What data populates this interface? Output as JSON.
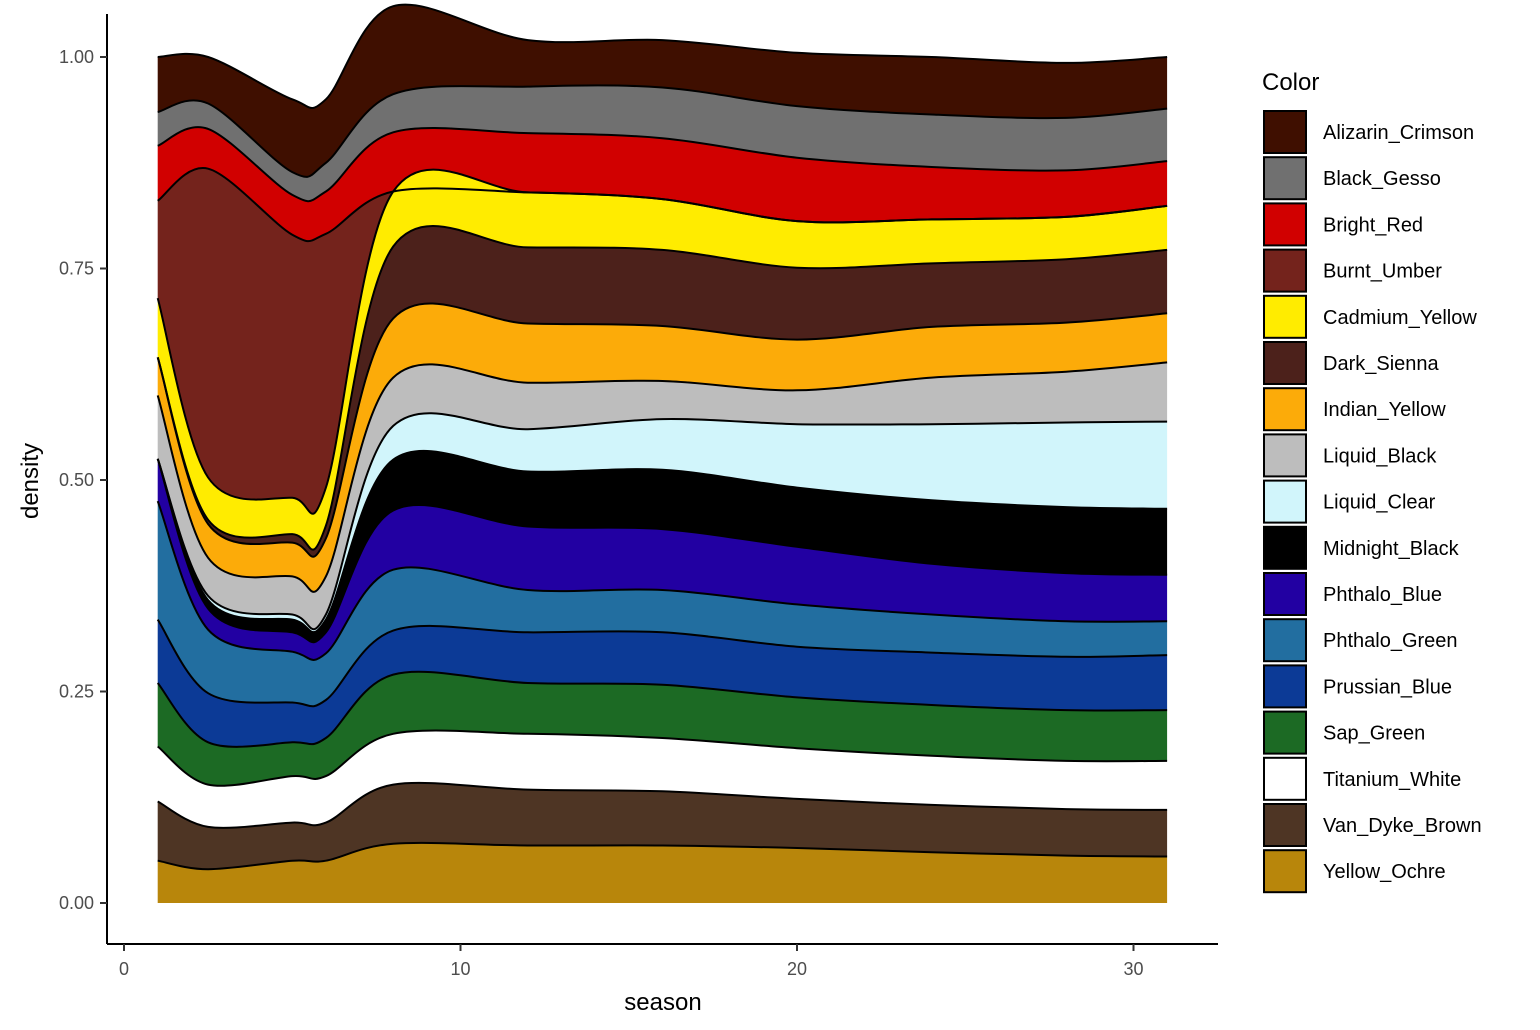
{
  "chart_data": {
    "type": "area",
    "subtype": "stacked density (fill position)",
    "xlabel": "season",
    "ylabel": "density",
    "xlim": [
      1,
      31
    ],
    "ylim": [
      0,
      1
    ],
    "x_ticks": [
      0,
      10,
      20,
      30
    ],
    "y_ticks": [
      "0.00",
      "0.25",
      "0.50",
      "0.75",
      "1.00"
    ],
    "y_tick_values": [
      0,
      0.25,
      0.5,
      0.75,
      1.0
    ],
    "grid": false,
    "legend": {
      "title": "Color",
      "placement": "right"
    },
    "x": [
      1,
      2.5,
      5,
      6,
      8,
      12,
      16,
      20,
      24,
      28,
      31
    ],
    "series": [
      {
        "name": "Yellow_Ochre",
        "color": "#B8860B",
        "values": [
          0.05,
          0.04,
          0.05,
          0.05,
          0.07,
          0.068,
          0.068,
          0.065,
          0.06,
          0.056,
          0.055
        ]
      },
      {
        "name": "Van_Dyke_Brown",
        "color": "#4E3524",
        "values": [
          0.07,
          0.05,
          0.045,
          0.045,
          0.07,
          0.066,
          0.064,
          0.058,
          0.056,
          0.055,
          0.055
        ]
      },
      {
        "name": "Titanium_White",
        "color": "#FFFFFF",
        "values": [
          0.065,
          0.05,
          0.055,
          0.055,
          0.06,
          0.066,
          0.063,
          0.06,
          0.058,
          0.057,
          0.058
        ]
      },
      {
        "name": "Sap_Green",
        "color": "#1C6A24",
        "values": [
          0.075,
          0.05,
          0.04,
          0.045,
          0.07,
          0.06,
          0.063,
          0.06,
          0.06,
          0.06,
          0.06
        ]
      },
      {
        "name": "Prussian_Blue",
        "color": "#0C3A96",
        "values": [
          0.075,
          0.058,
          0.047,
          0.045,
          0.052,
          0.06,
          0.062,
          0.06,
          0.062,
          0.063,
          0.065
        ]
      },
      {
        "name": "Phthalo_Green",
        "color": "#226EA0",
        "values": [
          0.14,
          0.075,
          0.06,
          0.055,
          0.072,
          0.05,
          0.05,
          0.05,
          0.045,
          0.042,
          0.04
        ]
      },
      {
        "name": "Phthalo_Blue",
        "color": "#2200A2",
        "values": [
          0.05,
          0.025,
          0.023,
          0.025,
          0.07,
          0.075,
          0.072,
          0.068,
          0.06,
          0.057,
          0.055
        ]
      },
      {
        "name": "Midnight_Black",
        "color": "#000000",
        "values": [
          0.0,
          0.01,
          0.015,
          0.015,
          0.06,
          0.065,
          0.07,
          0.07,
          0.075,
          0.078,
          0.078
        ]
      },
      {
        "name": "Liquid_Clear",
        "color": "#D1F5FB",
        "values": [
          0.0,
          0.005,
          0.006,
          0.006,
          0.04,
          0.05,
          0.06,
          0.075,
          0.09,
          0.1,
          0.103
        ]
      },
      {
        "name": "Liquid_Black",
        "color": "#BDBDBD",
        "values": [
          0.075,
          0.045,
          0.045,
          0.045,
          0.057,
          0.055,
          0.045,
          0.04,
          0.055,
          0.06,
          0.07
        ]
      },
      {
        "name": "Indian_Yellow",
        "color": "#FCAB09",
        "values": [
          0.045,
          0.04,
          0.04,
          0.045,
          0.07,
          0.07,
          0.065,
          0.06,
          0.06,
          0.058,
          0.058
        ]
      },
      {
        "name": "Dark_Sienna",
        "color": "#4C211B",
        "values": [
          0.0,
          0.005,
          0.01,
          0.015,
          0.085,
          0.09,
          0.09,
          0.085,
          0.075,
          0.075,
          0.075
        ]
      },
      {
        "name": "Cadmium_Yellow",
        "color": "#FFEC00",
        "values": [
          0.07,
          0.05,
          0.043,
          0.045,
          0.065,
          0.065,
          0.06,
          0.055,
          0.052,
          0.05,
          0.052
        ]
      },
      {
        "name": "Burnt_Umber",
        "color": "#74231C",
        "values": [
          0.115,
          0.365,
          0.311,
          0.3,
          0.0,
          0.0,
          0.0,
          0.0,
          0.0,
          0.0,
          0.0
        ]
      },
      {
        "name": "Bright_Red",
        "color": "#D10000",
        "values": [
          0.065,
          0.047,
          0.047,
          0.05,
          0.07,
          0.07,
          0.072,
          0.075,
          0.062,
          0.055,
          0.053
        ]
      },
      {
        "name": "Black_Gesso",
        "color": "#707070",
        "values": [
          0.04,
          0.03,
          0.027,
          0.034,
          0.045,
          0.055,
          0.06,
          0.061,
          0.062,
          0.062,
          0.062
        ]
      },
      {
        "name": "Alizarin_Crimson",
        "color": "#3F0F00",
        "values": [
          0.065,
          0.055,
          0.086,
          0.075,
          0.104,
          0.055,
          0.056,
          0.063,
          0.068,
          0.065,
          0.061
        ]
      }
    ]
  }
}
